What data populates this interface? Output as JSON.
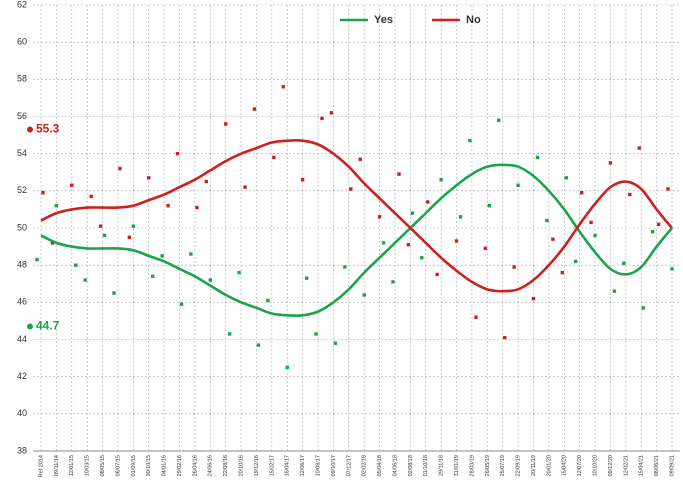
{
  "chart_data": {
    "type": "line",
    "categories": [
      "Ref 2014",
      "09/11/14",
      "12/01/15",
      "10/03/15",
      "08/05/15",
      "06/07/15",
      "01/09/15",
      "30/10/15",
      "04/01/16",
      "29/02/16",
      "26/04/16",
      "24/06/16",
      "22/08/16",
      "20/10/16",
      "19/12/16",
      "15/02/17",
      "16/04/17",
      "12/06/17",
      "10/08/17",
      "09/10/17",
      "07/12/17",
      "02/02/18",
      "05/04/18",
      "04/06/18",
      "02/08/18",
      "01/10/18",
      "29/11/18",
      "31/01/19",
      "28/03/19",
      "26/05/19",
      "25/07/19",
      "22/09/19",
      "20/11/19",
      "20/01/20",
      "15/04/20",
      "12/07/20",
      "10/10/20",
      "09/12/20",
      "12/02/21",
      "15/04/21",
      "08/06/21",
      "09/09/21"
    ],
    "series": [
      {
        "name": "Yes",
        "color": "#1aa54b",
        "values": [
          49.6,
          49.2,
          49.0,
          48.9,
          48.9,
          48.9,
          48.8,
          48.5,
          48.2,
          47.8,
          47.4,
          46.9,
          46.4,
          46.0,
          45.7,
          45.4,
          45.3,
          45.3,
          45.5,
          46.0,
          46.7,
          47.6,
          48.4,
          49.2,
          50.0,
          50.8,
          51.6,
          52.3,
          52.9,
          53.3,
          53.4,
          53.3,
          52.8,
          52.0,
          51.0,
          49.8,
          48.7,
          47.8,
          47.5,
          47.9,
          49.0,
          50.0
        ],
        "polls": [
          48.3,
          51.2,
          48.0,
          47.2,
          49.6,
          46.5,
          50.1,
          47.4,
          48.5,
          45.9,
          48.6,
          47.2,
          44.3,
          47.6,
          43.7,
          46.1,
          42.5,
          47.3,
          44.3,
          43.8,
          47.9,
          46.4,
          49.2,
          47.1,
          50.8,
          48.4,
          52.6,
          50.6,
          54.7,
          51.2,
          55.8,
          52.3,
          53.8,
          50.4,
          52.7,
          48.2,
          49.6,
          46.6,
          48.1,
          45.7,
          49.8,
          47.8
        ]
      },
      {
        "name": "No",
        "color": "#d11f1f",
        "values": [
          50.4,
          50.8,
          51.0,
          51.1,
          51.1,
          51.1,
          51.2,
          51.5,
          51.8,
          52.2,
          52.6,
          53.1,
          53.6,
          54.0,
          54.3,
          54.6,
          54.7,
          54.7,
          54.5,
          54.0,
          53.3,
          52.4,
          51.6,
          50.8,
          50.0,
          49.2,
          48.4,
          47.7,
          47.1,
          46.7,
          46.6,
          46.7,
          47.2,
          48.0,
          49.0,
          50.2,
          51.3,
          52.2,
          52.5,
          52.1,
          51.0,
          50.0
        ],
        "polls": [
          51.9,
          49.2,
          52.3,
          51.7,
          50.1,
          53.2,
          49.5,
          52.7,
          51.2,
          54.0,
          51.1,
          52.5,
          55.6,
          52.2,
          56.4,
          53.8,
          57.6,
          52.6,
          55.9,
          56.2,
          52.1,
          53.7,
          50.6,
          52.9,
          49.1,
          51.4,
          47.5,
          49.3,
          45.2,
          48.9,
          44.1,
          47.9,
          46.2,
          49.4,
          47.6,
          51.9,
          50.3,
          53.5,
          51.8,
          54.3,
          50.2,
          52.1
        ]
      }
    ],
    "annotations": [
      {
        "label": "55.3",
        "value": 55.3,
        "color": "#d11f1f"
      },
      {
        "label": "44.7",
        "value": 44.7,
        "color": "#1aa54b"
      }
    ],
    "ylim": [
      38,
      62
    ],
    "yticks": [
      38,
      40,
      42,
      44,
      46,
      48,
      50,
      52,
      54,
      56,
      58,
      60,
      62
    ],
    "grid": true
  }
}
